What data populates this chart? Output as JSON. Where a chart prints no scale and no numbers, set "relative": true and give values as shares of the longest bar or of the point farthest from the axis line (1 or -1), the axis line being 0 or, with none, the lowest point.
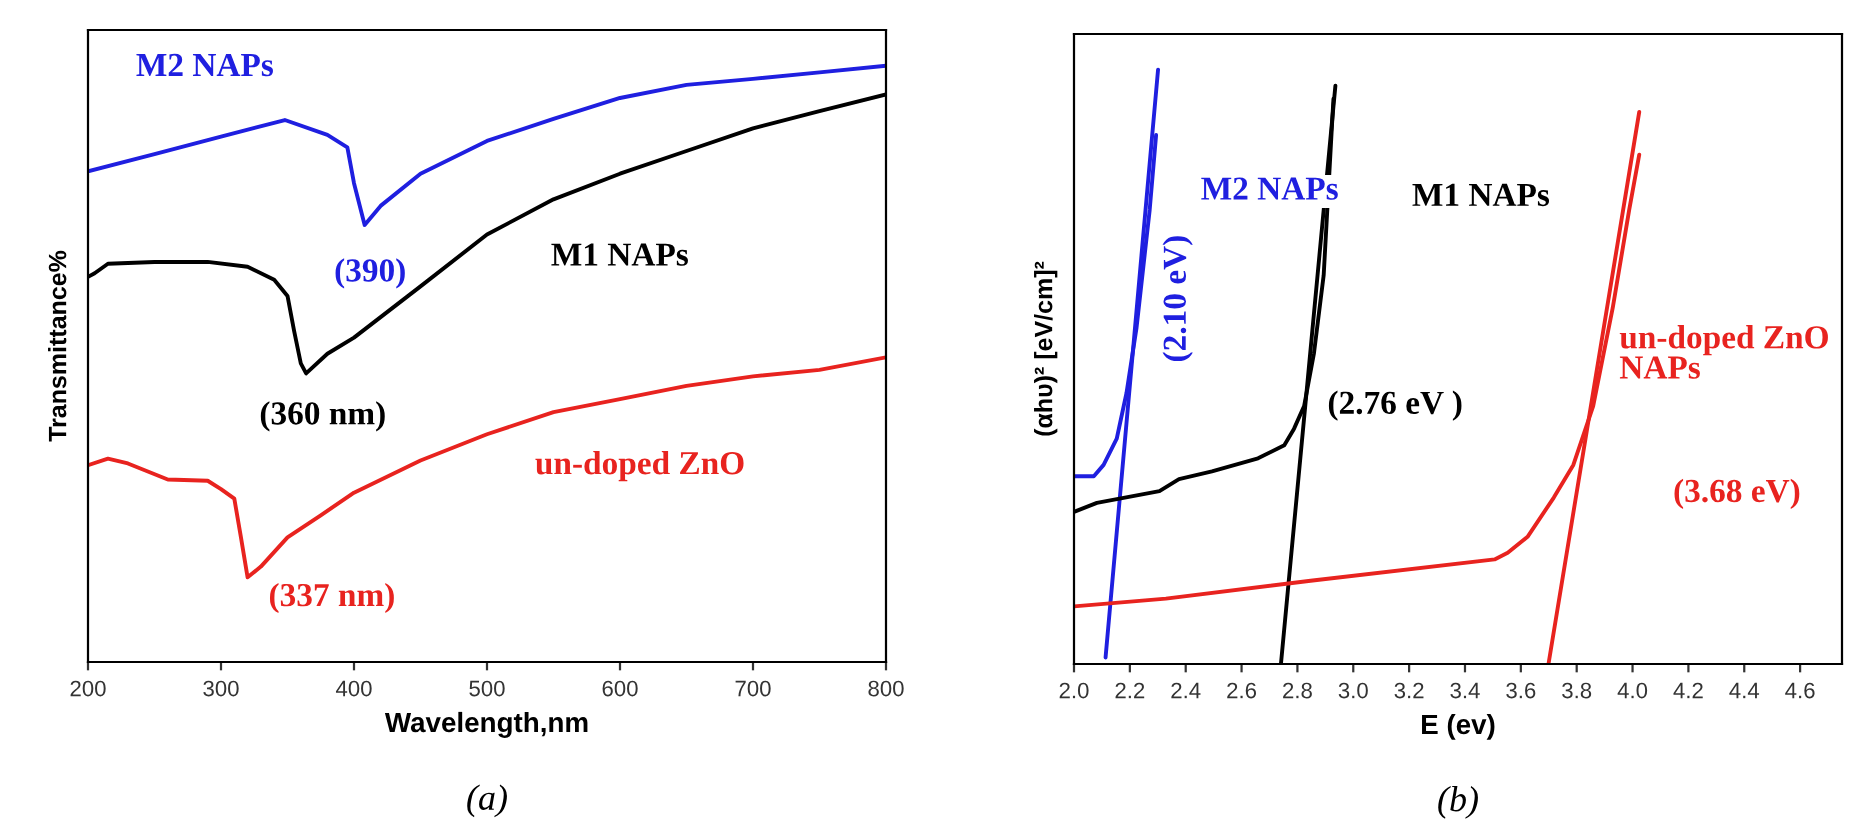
{
  "chart_data": [
    {
      "type": "line",
      "title": "(a)",
      "xlabel": "Wavelength,nm",
      "ylabel": "Transmittance%",
      "relative": true,
      "xlim": [
        200,
        800
      ],
      "xticks": [
        200,
        300,
        400,
        500,
        600,
        700,
        800
      ],
      "grid": false,
      "legend": false,
      "series": [
        {
          "name": "M2 NAPs",
          "color": "#1f1fe0",
          "x": [
            200,
            250,
            300,
            348,
            380,
            395,
            400,
            408,
            420,
            450,
            500,
            550,
            600,
            650,
            700,
            750,
            800
          ],
          "values": [
            0.823,
            0.852,
            0.881,
            0.909,
            0.884,
            0.863,
            0.803,
            0.733,
            0.765,
            0.819,
            0.874,
            0.911,
            0.946,
            0.968,
            0.978,
            0.989,
            1.0
          ]
        },
        {
          "name": "M1 NAPs",
          "color": "#000000",
          "x": [
            200,
            205,
            215,
            250,
            290,
            320,
            340,
            350,
            355,
            360,
            364,
            380,
            400,
            450,
            500,
            550,
            600,
            650,
            700,
            750,
            800
          ],
          "values": [
            0.646,
            0.652,
            0.668,
            0.671,
            0.671,
            0.663,
            0.641,
            0.614,
            0.555,
            0.501,
            0.484,
            0.517,
            0.544,
            0.63,
            0.717,
            0.776,
            0.819,
            0.857,
            0.895,
            0.924,
            0.952
          ]
        },
        {
          "name": "un-doped ZnO",
          "color": "#e8231f",
          "x": [
            200,
            215,
            230,
            260,
            290,
            300,
            310,
            315,
            320,
            330,
            350,
            375,
            400,
            450,
            500,
            550,
            600,
            650,
            700,
            750,
            800
          ],
          "values": [
            0.33,
            0.341,
            0.333,
            0.306,
            0.304,
            0.29,
            0.274,
            0.209,
            0.142,
            0.16,
            0.209,
            0.246,
            0.284,
            0.338,
            0.382,
            0.419,
            0.441,
            0.463,
            0.479,
            0.49,
            0.511
          ]
        }
      ],
      "annotations": [
        {
          "text": "(390)",
          "x": 408,
          "y": 0.733
        },
        {
          "text": "(360 nm)",
          "x": 364,
          "y": 0.484
        },
        {
          "text": "(337 nm)",
          "x": 319,
          "y": 0.142
        }
      ]
    },
    {
      "type": "line",
      "title": "(b)",
      "xlabel": "E (ev)",
      "ylabel": "(αhυ)² [eV/cm]²",
      "relative": true,
      "xlim": [
        2.0,
        4.75
      ],
      "xticks": [
        {
          "value": 2.0,
          "label": "2.0"
        },
        2.2,
        2.4,
        2.6,
        2.8,
        {
          "value": 3.0,
          "label": "3.0"
        },
        3.2,
        3.4,
        3.6,
        3.8,
        {
          "value": 4.0,
          "label": "4.0"
        },
        4.2,
        4.4,
        4.6
      ],
      "grid": false,
      "legend": false,
      "series": [
        {
          "name": "M2 NAPs",
          "color": "#1f1fe0",
          "x": [
            2.0,
            2.071,
            2.106,
            2.153,
            2.188,
            2.224,
            2.271,
            2.294
          ],
          "values": [
            0.316,
            0.316,
            0.335,
            0.379,
            0.456,
            0.566,
            0.764,
            0.89
          ]
        },
        {
          "color": "#1f1fe0",
          "x": [
            2.113,
            2.301
          ],
          "values": [
            0.011,
            1.0
          ]
        },
        {
          "name": "M1 NAPs",
          "color": "#000000",
          "x": [
            2.0,
            2.082,
            2.306,
            2.376,
            2.494,
            2.659,
            2.753,
            2.788,
            2.824,
            2.859,
            2.894,
            2.929
          ],
          "values": [
            0.256,
            0.271,
            0.291,
            0.311,
            0.324,
            0.346,
            0.368,
            0.396,
            0.434,
            0.522,
            0.654,
            0.951
          ]
        },
        {
          "color": "#000000",
          "x": [
            2.741,
            2.936
          ],
          "values": [
            0.0,
            0.973
          ]
        },
        {
          "name": "un-doped ZnO NAPs",
          "color": "#e8231f",
          "x": [
            2.0,
            2.329,
            2.847,
            3.506,
            3.553,
            3.624,
            3.718,
            3.788,
            3.859,
            3.929,
            3.988,
            4.024
          ],
          "values": [
            0.097,
            0.11,
            0.14,
            0.176,
            0.187,
            0.214,
            0.28,
            0.335,
            0.434,
            0.599,
            0.764,
            0.857
          ]
        },
        {
          "color": "#e8231f",
          "x": [
            3.699,
            4.024
          ],
          "values": [
            0.0,
            0.929
          ]
        }
      ],
      "annotations": [
        "(2.10 eV)",
        "(2.76 eV )",
        "(3.68 eV)"
      ]
    }
  ]
}
